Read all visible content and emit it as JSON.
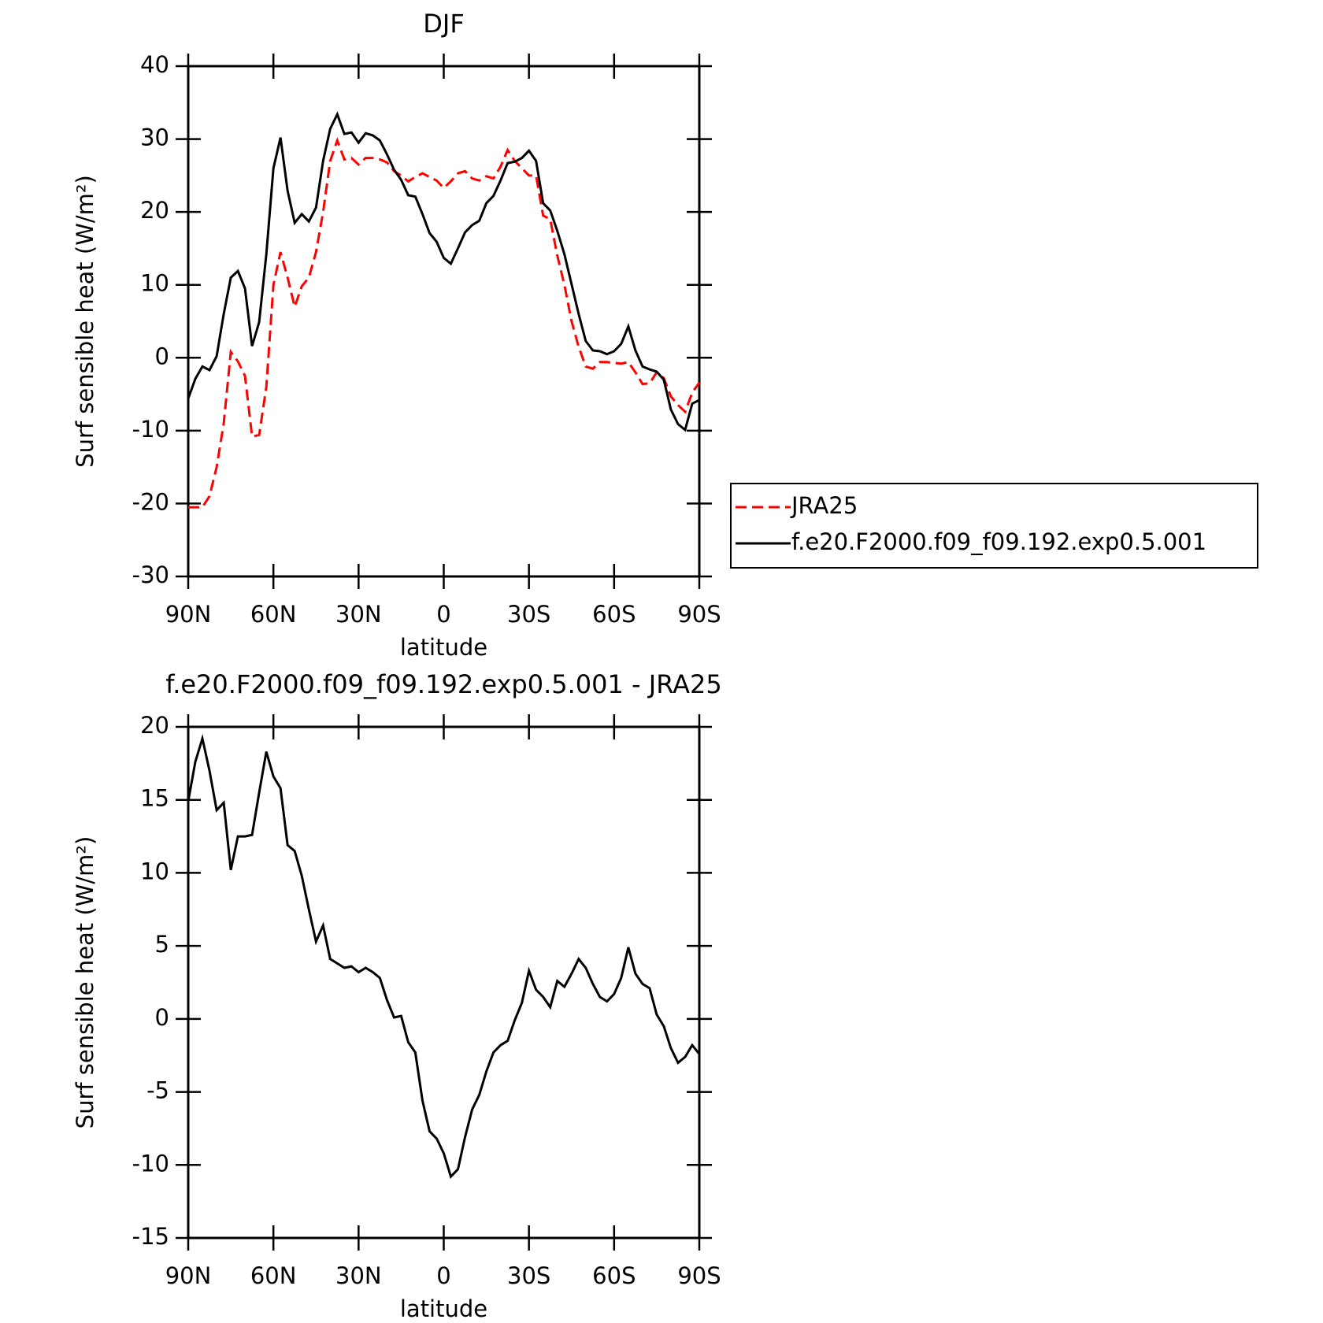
{
  "chart_data": [
    {
      "type": "line",
      "title": "DJF",
      "xlabel": "latitude",
      "ylabel": "Surf sensible heat (W/m²)",
      "xlim": [
        90,
        -90
      ],
      "xticks": [
        {
          "value": 90,
          "label": "90N"
        },
        {
          "value": 60,
          "label": "60N"
        },
        {
          "value": 30,
          "label": "30N"
        },
        0,
        {
          "value": -30,
          "label": "30S"
        },
        {
          "value": -60,
          "label": "60S"
        },
        {
          "value": -90,
          "label": "90S"
        }
      ],
      "ylim": [
        -30,
        40
      ],
      "yticks": [
        -30,
        -20,
        -10,
        0,
        10,
        20,
        30,
        40
      ],
      "legend_position": "right",
      "x": [
        90,
        87.5,
        85,
        82.5,
        80,
        77.5,
        75,
        72.5,
        70,
        67.5,
        65,
        62.5,
        60,
        57.5,
        55,
        52.5,
        50,
        47.5,
        45,
        42.5,
        40,
        37.5,
        35,
        32.5,
        30,
        27.5,
        25,
        22.5,
        20,
        17.5,
        15,
        12.5,
        10,
        7.5,
        5,
        2.5,
        0,
        -2.5,
        -5,
        -7.5,
        -10,
        -12.5,
        -15,
        -17.5,
        -20,
        -22.5,
        -25,
        -27.5,
        -30,
        -32.5,
        -35,
        -37.5,
        -40,
        -42.5,
        -45,
        -47.5,
        -50,
        -52.5,
        -55,
        -57.5,
        -60,
        -62.5,
        -65,
        -67.5,
        -70,
        -72.5,
        -75,
        -77.5,
        -80,
        -82.5,
        -85,
        -87.5,
        -90
      ],
      "series": [
        {
          "name": "JRA25",
          "color": "#ff0000",
          "dashed": true,
          "values": [
            -20.5,
            -20.5,
            -20.5,
            -19,
            -15,
            -9,
            0.8,
            -0.5,
            -2.5,
            -10.8,
            -10.6,
            -4,
            10,
            14.5,
            11,
            7,
            9.8,
            11,
            14.5,
            20,
            27,
            29.8,
            27.2,
            27.4,
            26.5,
            27.4,
            27.4,
            27.2,
            26.8,
            25.6,
            25,
            24.2,
            24.8,
            25.3,
            24.8,
            24.3,
            23.3,
            24.2,
            25.3,
            25.6,
            24.6,
            24.3,
            24.9,
            24.6,
            26.2,
            28.5,
            27,
            26,
            25,
            25,
            19.5,
            19,
            14,
            10,
            5,
            1.5,
            -1.2,
            -1.5,
            -0.6,
            -0.6,
            -0.7,
            -0.8,
            -0.6,
            -2,
            -3.6,
            -3.5,
            -2,
            -2.8,
            -5.3,
            -6.5,
            -7.4,
            -4.8,
            -3.4
          ]
        },
        {
          "name": "f.e20.F2000.f09_f09.192.exp0.5.001",
          "color": "#000000",
          "dashed": false,
          "values": [
            -5.6,
            -2.9,
            -1.2,
            -1.7,
            0.2,
            6,
            11,
            11.9,
            9.5,
            1.6,
            4.9,
            14.2,
            26,
            30.2,
            22.9,
            18.5,
            19.7,
            18.7,
            20.6,
            27,
            31.4,
            33.4,
            30.7,
            30.9,
            29.5,
            30.8,
            30.5,
            29.8,
            27.9,
            25.8,
            24.4,
            22.3,
            22.1,
            19.7,
            17.1,
            15.9,
            13.7,
            12.9,
            15,
            17.2,
            18.2,
            18.8,
            21.2,
            22.2,
            24.3,
            26.7,
            26.9,
            27.4,
            28.4,
            27,
            21.2,
            20.2,
            17.4,
            14.2,
            10.1,
            6,
            2.3,
            1,
            0.9,
            0.5,
            0.9,
            1.9,
            4.3,
            1,
            -1.2,
            -1.6,
            -1.9,
            -3,
            -7.1,
            -9.1,
            -9.9,
            -6.3,
            -5.8
          ]
        }
      ]
    },
    {
      "type": "line",
      "title": "f.e20.F2000.f09_f09.192.exp0.5.001 - JRA25",
      "xlabel": "latitude",
      "ylabel": "Surf sensible heat (W/m²)",
      "xlim": [
        90,
        -90
      ],
      "xticks": [
        {
          "value": 90,
          "label": "90N"
        },
        {
          "value": 60,
          "label": "60N"
        },
        {
          "value": 30,
          "label": "30N"
        },
        0,
        {
          "value": -30,
          "label": "30S"
        },
        {
          "value": -60,
          "label": "60S"
        },
        {
          "value": -90,
          "label": "90S"
        }
      ],
      "ylim": [
        -15,
        20
      ],
      "yticks": [
        -15,
        -10,
        -5,
        0,
        5,
        10,
        15,
        20
      ],
      "x": [
        90,
        87.5,
        85,
        82.5,
        80,
        77.5,
        75,
        72.5,
        70,
        67.5,
        65,
        62.5,
        60,
        57.5,
        55,
        52.5,
        50,
        47.5,
        45,
        42.5,
        40,
        37.5,
        35,
        32.5,
        30,
        27.5,
        25,
        22.5,
        20,
        17.5,
        15,
        12.5,
        10,
        7.5,
        5,
        2.5,
        0,
        -2.5,
        -5,
        -7.5,
        -10,
        -12.5,
        -15,
        -17.5,
        -20,
        -22.5,
        -25,
        -27.5,
        -30,
        -32.5,
        -35,
        -37.5,
        -40,
        -42.5,
        -45,
        -47.5,
        -50,
        -52.5,
        -55,
        -57.5,
        -60,
        -62.5,
        -65,
        -67.5,
        -70,
        -72.5,
        -75,
        -77.5,
        -80,
        -82.5,
        -85,
        -87.5,
        -90
      ],
      "series": [
        {
          "color": "#000000",
          "dashed": false,
          "values": [
            14.9,
            17.6,
            19.2,
            17,
            14.3,
            14.8,
            10.2,
            12.5,
            12.5,
            12.6,
            15.5,
            18.3,
            16.6,
            15.8,
            11.9,
            11.5,
            9.8,
            7.5,
            5.3,
            6.4,
            4.1,
            3.8,
            3.5,
            3.6,
            3.2,
            3.5,
            3.2,
            2.8,
            1.3,
            0.1,
            0.2,
            -1.6,
            -2.3,
            -5.6,
            -7.7,
            -8.2,
            -9.2,
            -10.8,
            -10.3,
            -8.1,
            -6.2,
            -5.2,
            -3.6,
            -2.3,
            -1.8,
            -1.5,
            -0.1,
            1.1,
            3.3,
            2,
            1.5,
            0.8,
            2.6,
            2.2,
            3.1,
            4.1,
            3.5,
            2.4,
            1.5,
            1.2,
            1.7,
            2.8,
            4.9,
            3.1,
            2.4,
            2.1,
            0.3,
            -0.5,
            -2,
            -3,
            -2.6,
            -1.8,
            -2.4
          ]
        }
      ]
    }
  ]
}
